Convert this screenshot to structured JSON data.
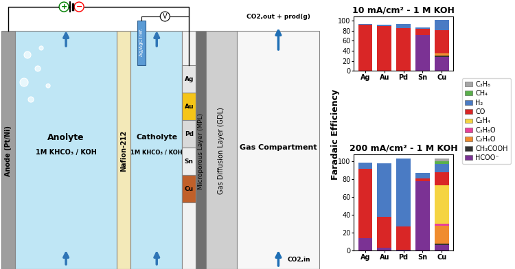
{
  "diagram": {
    "anode": "Anode (Pt/Ni)",
    "anolyte": {
      "label": "Anolyte",
      "electrolyte": "1M KHCO₃ / KOH"
    },
    "membrane": "Nafion-212",
    "catholyte": {
      "label": "Catholyte",
      "electrolyte": "1M KHCO₃ / KOH"
    },
    "reference": "Ag/AgCl ref.",
    "voltmeter": "V",
    "power_source": [
      "+",
      "−"
    ],
    "catalysts": [
      "Ag",
      "Au",
      "Pd",
      "Sn",
      "Cu"
    ],
    "mpl": "Microporous Layer (MPL)",
    "gdl": "Gas Diffusion Layer (GDL)",
    "gas_compartment": "Gas Compartment",
    "gas_out": "CO2,out + prod(g)",
    "gas_in": "CO2,in"
  },
  "figure": {
    "ylabel": "Faradaic Efficiency"
  },
  "chart_data": [
    {
      "type": "bar",
      "stacked": true,
      "title": "10 mA/cm² - 1 M KOH",
      "legend": "right",
      "categories": [
        "Ag",
        "Au",
        "Pd",
        "Sn",
        "Cu"
      ],
      "ylim": [
        0,
        108
      ],
      "yticks": [
        0,
        20,
        40,
        60,
        80,
        100
      ],
      "series": [
        {
          "name": "HCOO⁻",
          "color": "#7b3294",
          "values": [
            0,
            0,
            0,
            71,
            28
          ]
        },
        {
          "name": "CH₃COOH",
          "color": "#333333",
          "values": [
            0,
            0,
            0,
            0,
            2
          ]
        },
        {
          "name": "C₂H₆O",
          "color": "#f08c2e",
          "values": [
            0,
            0,
            0,
            0,
            3
          ]
        },
        {
          "name": "C₃H₈O",
          "color": "#e8419b",
          "values": [
            0,
            0,
            0,
            0,
            0
          ]
        },
        {
          "name": "C₂H₄",
          "color": "#f5d442",
          "values": [
            0,
            0,
            0,
            0,
            2
          ]
        },
        {
          "name": "CO",
          "color": "#d92626",
          "values": [
            92,
            89,
            85,
            13,
            46
          ]
        },
        {
          "name": "H₂",
          "color": "#4a7bc4",
          "values": [
            1,
            3,
            8,
            3,
            21
          ]
        },
        {
          "name": "CH₄",
          "color": "#5ab04b",
          "values": [
            0,
            0,
            0,
            0,
            0
          ]
        },
        {
          "name": "C₃H₈",
          "color": "#a6a6a6",
          "values": [
            0,
            0,
            0,
            0,
            0
          ]
        }
      ]
    },
    {
      "type": "bar",
      "stacked": true,
      "title": "200 mA/cm² - 1 M KOH",
      "categories": [
        "Ag",
        "Au",
        "Pd",
        "Sn",
        "Cu"
      ],
      "ylim": [
        0,
        108
      ],
      "yticks": [
        0,
        20,
        40,
        60,
        80,
        100
      ],
      "series": [
        {
          "name": "HCOO⁻",
          "color": "#7b3294",
          "values": [
            14,
            3,
            1,
            78,
            6
          ]
        },
        {
          "name": "CH₃COOH",
          "color": "#333333",
          "values": [
            0,
            0,
            0,
            0,
            2
          ]
        },
        {
          "name": "C₂H₆O",
          "color": "#f08c2e",
          "values": [
            0,
            0,
            0,
            0,
            20
          ]
        },
        {
          "name": "C₃H₈O",
          "color": "#e8419b",
          "values": [
            0,
            0,
            0,
            0,
            2
          ]
        },
        {
          "name": "C₂H₄",
          "color": "#f5d442",
          "values": [
            0,
            0,
            0,
            0,
            43
          ]
        },
        {
          "name": "CO",
          "color": "#d92626",
          "values": [
            78,
            35,
            26,
            3,
            15
          ]
        },
        {
          "name": "H₂",
          "color": "#4a7bc4",
          "values": [
            7,
            60,
            76,
            6,
            9
          ]
        },
        {
          "name": "CH₄",
          "color": "#5ab04b",
          "values": [
            0,
            0,
            0,
            0,
            3
          ]
        },
        {
          "name": "C₃H₈",
          "color": "#a6a6a6",
          "values": [
            0,
            0,
            0,
            0,
            3
          ]
        }
      ]
    }
  ]
}
